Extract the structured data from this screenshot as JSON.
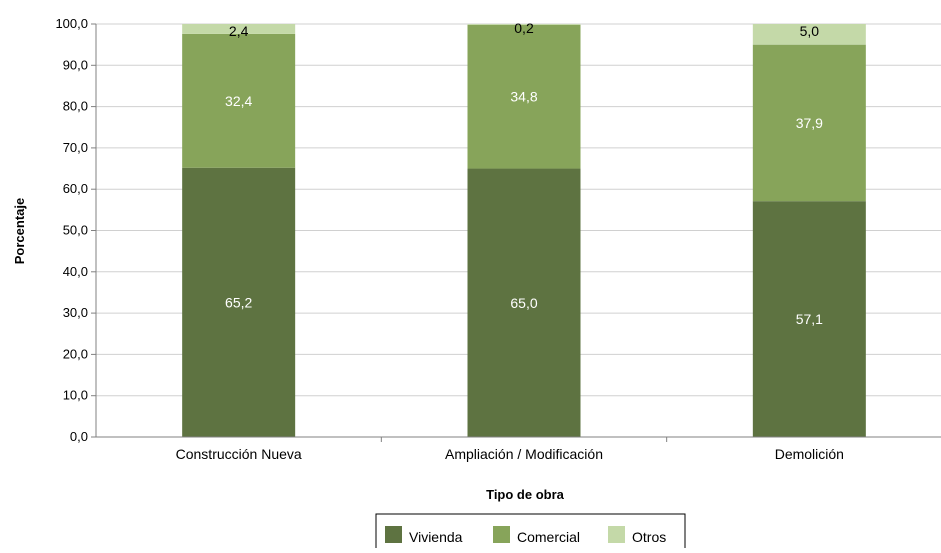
{
  "chart_data": {
    "type": "bar",
    "stacked": true,
    "title": "",
    "xlabel": "Tipo de obra",
    "ylabel": "Porcentaje",
    "ylim": [
      0,
      100
    ],
    "yticks": [
      "0,0",
      "10,0",
      "20,0",
      "30,0",
      "40,0",
      "50,0",
      "60,0",
      "70,0",
      "80,0",
      "90,0",
      "100,0"
    ],
    "grid": true,
    "legend_position": "bottom",
    "categories": [
      "Construcción Nueva",
      "Ampliación / Modificación",
      "Demolición"
    ],
    "series": [
      {
        "name": "Vivienda",
        "color": "#5e7341",
        "label_color": "#ffffff",
        "values": [
          65.2,
          65.0,
          57.1
        ],
        "labels": [
          "65,2",
          "65,0",
          "57,1"
        ]
      },
      {
        "name": "Comercial",
        "color": "#87a45a",
        "label_color": "#ffffff",
        "values": [
          32.4,
          34.8,
          37.9
        ],
        "labels": [
          "32,4",
          "34,8",
          "37,9"
        ]
      },
      {
        "name": "Otros",
        "color": "#c4d9a8",
        "label_color": "#000000",
        "values": [
          2.4,
          0.2,
          5.0
        ],
        "labels": [
          "2,4",
          "0,2",
          "5,0"
        ]
      }
    ]
  }
}
